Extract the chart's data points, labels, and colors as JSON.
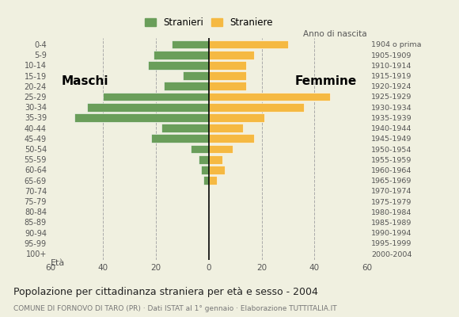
{
  "age_groups": [
    "0-4",
    "5-9",
    "10-14",
    "15-19",
    "20-24",
    "25-29",
    "30-34",
    "35-39",
    "40-44",
    "45-49",
    "50-54",
    "55-59",
    "60-64",
    "65-69",
    "70-74",
    "75-79",
    "80-84",
    "85-89",
    "90-94",
    "95-99",
    "100+"
  ],
  "birth_years": [
    "2000-2004",
    "1995-1999",
    "1990-1994",
    "1985-1989",
    "1980-1984",
    "1975-1979",
    "1970-1974",
    "1965-1969",
    "1960-1964",
    "1955-1959",
    "1950-1954",
    "1945-1949",
    "1940-1944",
    "1935-1939",
    "1930-1934",
    "1925-1929",
    "1920-1924",
    "1915-1919",
    "1910-1914",
    "1905-1909",
    "1904 o prima"
  ],
  "males": [
    14,
    21,
    23,
    10,
    17,
    40,
    46,
    51,
    18,
    22,
    7,
    4,
    3,
    2,
    0,
    0,
    0,
    0,
    0,
    0,
    0
  ],
  "females": [
    30,
    17,
    14,
    14,
    14,
    46,
    36,
    21,
    13,
    17,
    9,
    5,
    6,
    3,
    0,
    0,
    0,
    0,
    0,
    0,
    0
  ],
  "male_color": "#6a9e5a",
  "female_color": "#f5b942",
  "background_color": "#f0f0e0",
  "grid_color": "#aaaaaa",
  "title": "Popolazione per cittadinanza straniera per età e sesso - 2004",
  "subtitle": "COMUNE DI FORNOVO DI TARO (PR) · Dati ISTAT al 1° gennaio · Elaborazione TUTTITALIA.IT",
  "legend_males": "Stranieri",
  "legend_females": "Straniere",
  "label_maschi": "Maschi",
  "label_femmine": "Femmine",
  "xlim": 60,
  "anno_nascita_label": "Anno di nascita",
  "eta_label": "Età"
}
